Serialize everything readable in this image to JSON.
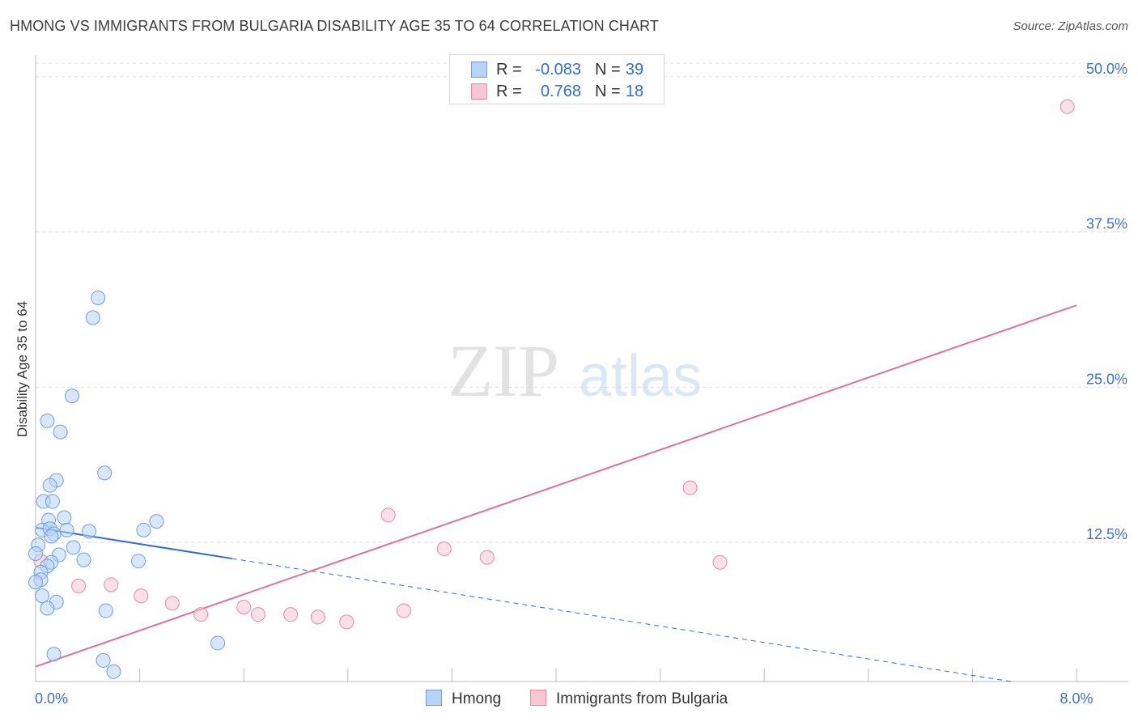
{
  "title": "HMONG VS IMMIGRANTS FROM BULGARIA DISABILITY AGE 35 TO 64 CORRELATION CHART",
  "source": "Source: ZipAtlas.com",
  "watermark": {
    "zip": "ZIP",
    "atlas": "atlas"
  },
  "colors": {
    "hmong_fill": "#b8d3f5",
    "hmong_stroke": "#6d9fde",
    "hmong_line": "#2f6fd0",
    "bulgaria_fill": "#f9c6d6",
    "bulgaria_stroke": "#e88aa8",
    "bulgaria_line": "#e0709a",
    "axis_text": "#3a72c8",
    "grid": "#dddddd"
  },
  "stats": [
    {
      "series": "Hmong",
      "r_label": "R =",
      "r_value": "-0.083",
      "n_label": "N =",
      "n_value": "39"
    },
    {
      "series": "Immigrants from Bulgaria",
      "r_label": "R =",
      "r_value": "0.768",
      "n_label": "N =",
      "n_value": "18"
    }
  ],
  "legend": [
    {
      "label": "Hmong"
    },
    {
      "label": "Immigrants from Bulgaria"
    }
  ],
  "chart_data": {
    "type": "scatter",
    "title": "HMONG VS IMMIGRANTS FROM BULGARIA DISABILITY AGE 35 TO 64 CORRELATION CHART",
    "xlabel": "",
    "ylabel": "Disability Age 35 to 64",
    "xlim": [
      0,
      8.0
    ],
    "ylim": [
      1.3,
      51.1
    ],
    "x_tick_labels": [
      {
        "value": 0,
        "label": "0.0%"
      },
      {
        "value": 8.0,
        "label": "8.0%"
      }
    ],
    "y_ticks": [
      {
        "value": 12.5,
        "label": "12.5%"
      },
      {
        "value": 25.0,
        "label": "25.0%"
      },
      {
        "value": 37.5,
        "label": "37.5%"
      },
      {
        "value": 50.0,
        "label": "50.0%"
      }
    ],
    "grid": true,
    "legend_position": "bottom",
    "series": [
      {
        "name": "Hmong",
        "points": [
          [
            0.48,
            32.2
          ],
          [
            0.44,
            30.6
          ],
          [
            0.28,
            24.3
          ],
          [
            0.09,
            22.3
          ],
          [
            0.19,
            21.4
          ],
          [
            0.53,
            18.1
          ],
          [
            0.16,
            17.5
          ],
          [
            0.11,
            17.1
          ],
          [
            0.06,
            15.8
          ],
          [
            0.13,
            15.8
          ],
          [
            0.22,
            14.5
          ],
          [
            0.1,
            14.3
          ],
          [
            0.93,
            14.2
          ],
          [
            0.05,
            13.5
          ],
          [
            0.11,
            13.6
          ],
          [
            0.24,
            13.5
          ],
          [
            0.41,
            13.4
          ],
          [
            0.83,
            13.5
          ],
          [
            0.14,
            13.2
          ],
          [
            0.12,
            13.0
          ],
          [
            0.02,
            12.3
          ],
          [
            0.29,
            12.1
          ],
          [
            0.18,
            11.5
          ],
          [
            0.0,
            11.6
          ],
          [
            0.37,
            11.1
          ],
          [
            0.79,
            11.0
          ],
          [
            0.12,
            10.9
          ],
          [
            0.09,
            10.6
          ],
          [
            0.04,
            10.1
          ],
          [
            0.04,
            9.5
          ],
          [
            0.05,
            8.2
          ],
          [
            0.16,
            7.7
          ],
          [
            0.09,
            7.2
          ],
          [
            0.54,
            7.0
          ],
          [
            1.4,
            4.4
          ],
          [
            0.14,
            3.5
          ],
          [
            0.52,
            3.0
          ],
          [
            0.6,
            2.1
          ],
          [
            0.0,
            9.3
          ]
        ]
      },
      {
        "name": "Immigrants from Bulgaria",
        "points": [
          [
            7.93,
            47.6
          ],
          [
            5.03,
            16.9
          ],
          [
            2.71,
            14.7
          ],
          [
            3.14,
            12.0
          ],
          [
            3.47,
            11.3
          ],
          [
            5.26,
            10.9
          ],
          [
            0.33,
            9.0
          ],
          [
            0.58,
            9.1
          ],
          [
            0.81,
            8.2
          ],
          [
            1.05,
            7.6
          ],
          [
            1.27,
            6.7
          ],
          [
            1.6,
            7.3
          ],
          [
            1.71,
            6.7
          ],
          [
            1.96,
            6.7
          ],
          [
            2.17,
            6.5
          ],
          [
            2.39,
            6.1
          ],
          [
            2.83,
            7.0
          ],
          [
            0.04,
            11.0
          ]
        ]
      }
    ],
    "trend_lines": [
      {
        "series": "Hmong",
        "x": [
          0.0,
          7.5
        ],
        "y": [
          13.7,
          1.3
        ],
        "solid_until_x": 1.51
      },
      {
        "series": "Immigrants from Bulgaria",
        "x": [
          0.0,
          8.0
        ],
        "y": [
          2.5,
          31.6
        ]
      }
    ]
  }
}
